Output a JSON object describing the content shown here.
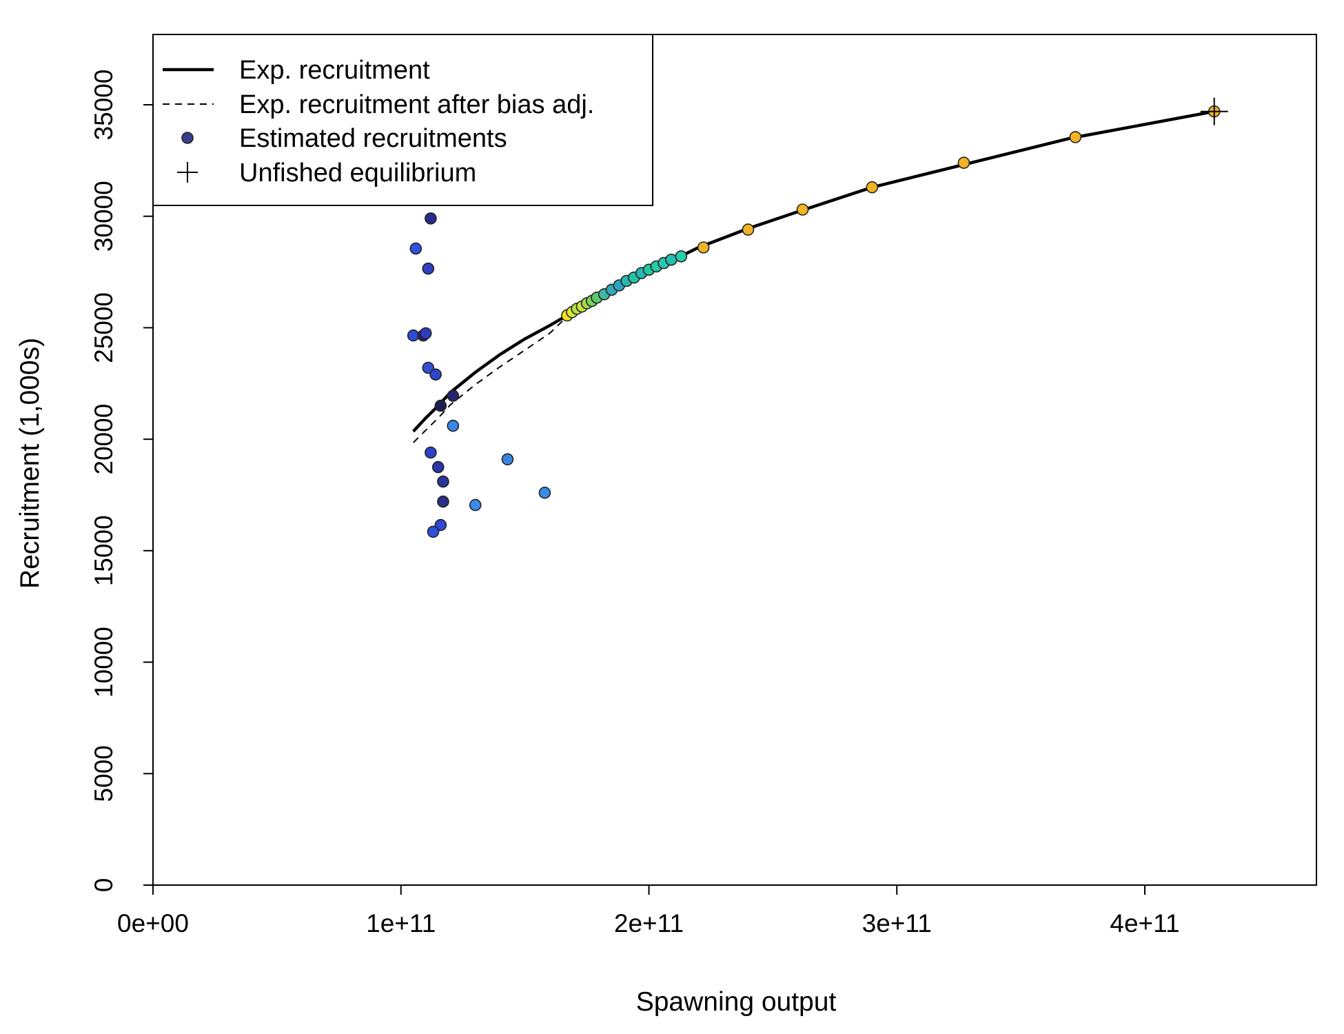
{
  "chart_data": {
    "type": "scatter",
    "title": "",
    "xlabel": "Spawning output",
    "ylabel": "Recruitment (1,000s)",
    "xlim": [
      0,
      470000000000
    ],
    "ylim": [
      0,
      38000
    ],
    "x_ticks": [
      0,
      100000000000,
      200000000000,
      300000000000,
      400000000000
    ],
    "x_tick_labels": [
      "0e+00",
      "1e+11",
      "2e+11",
      "3e+11",
      "4e+11"
    ],
    "y_ticks": [
      0,
      5000,
      10000,
      15000,
      20000,
      25000,
      30000,
      35000
    ],
    "y_tick_labels": [
      "0",
      "5000",
      "10000",
      "15000",
      "20000",
      "25000",
      "30000",
      "35000"
    ],
    "grid": false,
    "legend_position": "top-left",
    "legend": [
      {
        "label": "Exp. recruitment",
        "style": "solid-thick"
      },
      {
        "label": "Exp. recruitment after bias adj.",
        "style": "dashed"
      },
      {
        "label": "Estimated recruitments",
        "style": "point"
      },
      {
        "label": "Unfished equilibrium",
        "style": "cross"
      }
    ],
    "colors": {
      "line": "#000000",
      "legend_point": "#393E8C",
      "point_stroke": "#222222"
    },
    "lines": [
      {
        "name": "Exp. recruitment",
        "style": "solid",
        "x": [
          105000000000,
          110000000000,
          115000000000,
          120000000000,
          130000000000,
          140000000000,
          150000000000,
          160000000000,
          167000000000,
          175000000000,
          185000000000,
          200000000000,
          220000000000,
          240000000000,
          260000000000,
          290000000000,
          330000000000,
          370000000000,
          428000000000
        ],
        "y": [
          20350,
          20950,
          21500,
          22100,
          23000,
          23800,
          24500,
          25100,
          25550,
          26050,
          26650,
          27500,
          28600,
          29450,
          30200,
          31300,
          32400,
          33500,
          34700
        ]
      },
      {
        "name": "Exp. recruitment after bias adj.",
        "style": "dashed",
        "x": [
          105000000000,
          110000000000,
          115000000000,
          120000000000,
          130000000000,
          140000000000,
          150000000000,
          160000000000,
          167000000000,
          175000000000,
          185000000000,
          200000000000,
          220000000000,
          240000000000,
          260000000000,
          290000000000,
          330000000000,
          370000000000,
          428000000000
        ],
        "y": [
          19850,
          20400,
          20950,
          21550,
          22450,
          23250,
          24000,
          24750,
          25500,
          26020,
          26640,
          27490,
          28590,
          29440,
          30190,
          31290,
          32390,
          33490,
          34690
        ]
      }
    ],
    "points": [
      {
        "x": 112000000000,
        "y": 29900,
        "color": "#2A2A8C"
      },
      {
        "x": 106000000000,
        "y": 28550,
        "color": "#3050E0"
      },
      {
        "x": 111000000000,
        "y": 27650,
        "color": "#2E3FC4"
      },
      {
        "x": 105000000000,
        "y": 24650,
        "color": "#2F4CD8"
      },
      {
        "x": 109000000000,
        "y": 24650,
        "color": "#24246E"
      },
      {
        "x": 110000000000,
        "y": 24750,
        "color": "#2E3DBE"
      },
      {
        "x": 111000000000,
        "y": 23200,
        "color": "#3150D6"
      },
      {
        "x": 114000000000,
        "y": 22900,
        "color": "#2F45C8"
      },
      {
        "x": 121000000000,
        "y": 21950,
        "color": "#26266E"
      },
      {
        "x": 116000000000,
        "y": 21500,
        "color": "#1E1E55"
      },
      {
        "x": 121000000000,
        "y": 20600,
        "color": "#3A86E8"
      },
      {
        "x": 112000000000,
        "y": 19400,
        "color": "#3040C8"
      },
      {
        "x": 143000000000,
        "y": 19100,
        "color": "#3A82E0"
      },
      {
        "x": 115000000000,
        "y": 18750,
        "color": "#2B35A8"
      },
      {
        "x": 117000000000,
        "y": 18100,
        "color": "#2C3596"
      },
      {
        "x": 158000000000,
        "y": 17600,
        "color": "#3A8CE6"
      },
      {
        "x": 130000000000,
        "y": 17050,
        "color": "#3C8CE8"
      },
      {
        "x": 117000000000,
        "y": 17200,
        "color": "#2A2F86"
      },
      {
        "x": 116000000000,
        "y": 16150,
        "color": "#2F48D4"
      },
      {
        "x": 113000000000,
        "y": 15850,
        "color": "#2F4FD8"
      },
      {
        "x": 167000000000,
        "y": 25550,
        "color": "#F2E21E"
      },
      {
        "x": 169000000000,
        "y": 25700,
        "color": "#D6E63A"
      },
      {
        "x": 171000000000,
        "y": 25850,
        "color": "#B8E048"
      },
      {
        "x": 173000000000,
        "y": 25950,
        "color": "#C8E23C"
      },
      {
        "x": 175000000000,
        "y": 26100,
        "color": "#A2DA50"
      },
      {
        "x": 177000000000,
        "y": 26200,
        "color": "#7CD25C"
      },
      {
        "x": 179000000000,
        "y": 26350,
        "color": "#5CC86A"
      },
      {
        "x": 182000000000,
        "y": 26500,
        "color": "#3FB9A0"
      },
      {
        "x": 185000000000,
        "y": 26700,
        "color": "#34A7B8"
      },
      {
        "x": 188000000000,
        "y": 26900,
        "color": "#2FA3C4"
      },
      {
        "x": 191000000000,
        "y": 27100,
        "color": "#2CB4B0"
      },
      {
        "x": 194000000000,
        "y": 27250,
        "color": "#27C2A4"
      },
      {
        "x": 197000000000,
        "y": 27450,
        "color": "#22B8B4"
      },
      {
        "x": 200000000000,
        "y": 27600,
        "color": "#20C8A0"
      },
      {
        "x": 203000000000,
        "y": 27750,
        "color": "#2AC9A8"
      },
      {
        "x": 206000000000,
        "y": 27900,
        "color": "#26C8B0"
      },
      {
        "x": 209000000000,
        "y": 28050,
        "color": "#24C0B4"
      },
      {
        "x": 213000000000,
        "y": 28200,
        "color": "#25D0A8"
      },
      {
        "x": 222000000000,
        "y": 28600,
        "color": "#F0B22A"
      },
      {
        "x": 240000000000,
        "y": 29400,
        "color": "#F2B424"
      },
      {
        "x": 262000000000,
        "y": 30300,
        "color": "#F2B424"
      },
      {
        "x": 290000000000,
        "y": 31300,
        "color": "#F2B424"
      },
      {
        "x": 327000000000,
        "y": 32400,
        "color": "#F2B424"
      },
      {
        "x": 372000000000,
        "y": 33550,
        "color": "#F2B424"
      },
      {
        "x": 428000000000,
        "y": 34700,
        "color": "#F2B424"
      }
    ],
    "unfished_equilibrium": {
      "x": 428000000000,
      "y": 34700
    }
  }
}
